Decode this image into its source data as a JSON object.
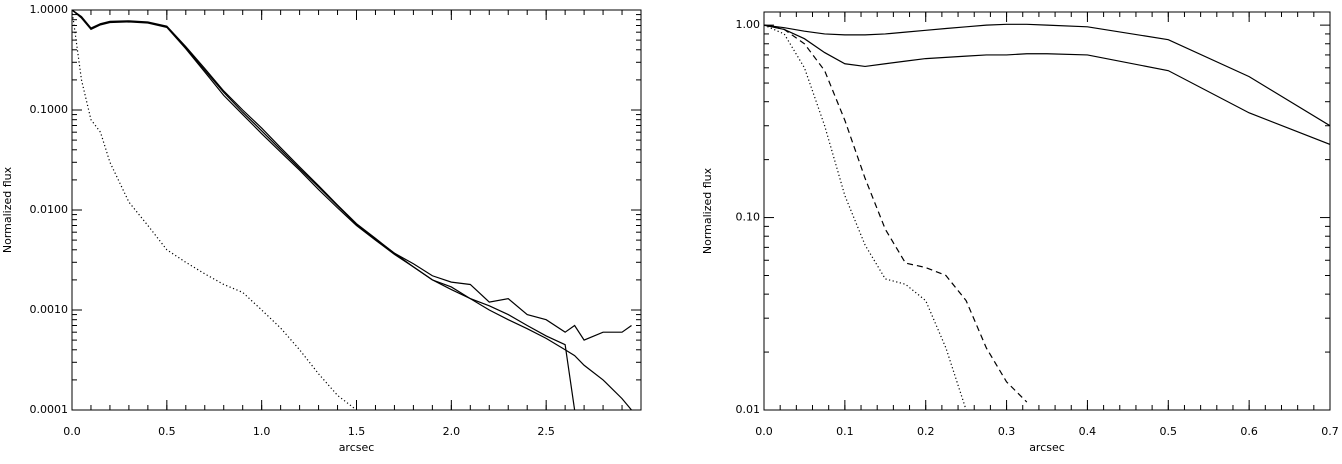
{
  "chart_data": [
    {
      "type": "line",
      "ylabel": "Normalized flux",
      "xlabel": "arcsec",
      "yscale": "log",
      "xlim": [
        0,
        3
      ],
      "ylim": [
        0.0001,
        1.0
      ],
      "xticks": [
        {
          "value": 0,
          "label": "0.0"
        },
        0.5,
        {
          "value": 1,
          "label": "1.0"
        },
        1.5,
        {
          "value": 2,
          "label": "2.0"
        },
        2.5
      ],
      "yticks": [
        {
          "value": 1,
          "label": "1.0000"
        },
        {
          "value": 0.1,
          "label": "0.1000"
        },
        {
          "value": 0.01,
          "label": "0.0100"
        },
        {
          "value": 0.001,
          "label": "0.0010"
        },
        {
          "value": 0.0001,
          "label": "0.0001"
        }
      ],
      "x": [
        0,
        0.05,
        0.1,
        0.15,
        0.2,
        0.3,
        0.4,
        0.5,
        0.6,
        0.7,
        0.8,
        0.9,
        1.0,
        1.1,
        1.2,
        1.3,
        1.4,
        1.5,
        1.6,
        1.7,
        1.8,
        1.9,
        2.0,
        2.1,
        2.2,
        2.3,
        2.4,
        2.5,
        2.6,
        2.65,
        2.7,
        2.8,
        2.9,
        2.95
      ],
      "series": [
        {
          "color": "#000000",
          "dash": "solid",
          "values": [
            1.0,
            0.85,
            0.65,
            0.72,
            0.76,
            0.77,
            0.75,
            0.68,
            0.42,
            0.25,
            0.15,
            0.095,
            0.062,
            0.04,
            0.026,
            0.017,
            0.011,
            0.0072,
            0.0051,
            0.0037,
            0.0029,
            0.0022,
            0.0019,
            0.0018,
            0.0012,
            0.0013,
            0.0009,
            0.0008,
            0.0006,
            0.0007,
            0.0005,
            0.0006,
            0.0006,
            0.0007
          ]
        },
        {
          "color": "#000000",
          "dash": "solid",
          "values": [
            1.0,
            0.83,
            0.64,
            0.71,
            0.75,
            0.76,
            0.74,
            0.67,
            0.41,
            0.24,
            0.14,
            0.09,
            0.058,
            0.038,
            0.025,
            0.016,
            0.0105,
            0.007,
            0.005,
            0.0036,
            0.0027,
            0.002,
            0.0016,
            0.0013,
            0.001,
            0.0008,
            0.00065,
            0.00052,
            0.0004,
            0.00035,
            0.00028,
            0.0002,
            0.00013,
            0.0001
          ]
        },
        {
          "color": "#000000",
          "dash": "solid",
          "values": [
            1.0,
            0.86,
            0.66,
            0.73,
            0.77,
            0.78,
            0.76,
            0.69,
            0.43,
            0.26,
            0.155,
            0.1,
            0.066,
            0.042,
            0.027,
            0.0175,
            0.0112,
            0.0073,
            0.0052,
            0.0037,
            0.0027,
            0.002,
            0.0017,
            0.0013,
            0.0011,
            0.0009,
            0.0007,
            0.00055,
            0.00045,
            0.0001,
            null,
            null,
            null,
            null
          ]
        },
        {
          "color": "#000000",
          "dash": "dotted",
          "values": [
            1.0,
            0.2,
            0.08,
            0.06,
            0.03,
            0.012,
            0.007,
            0.004,
            0.003,
            0.0023,
            0.0018,
            0.0015,
            0.001,
            0.00066,
            0.0004,
            0.00023,
            0.00014,
            0.0001,
            null,
            null,
            null,
            null,
            null,
            null,
            null,
            null,
            null,
            null,
            null,
            null,
            null,
            null,
            null,
            null
          ]
        }
      ]
    },
    {
      "type": "line",
      "ylabel": "Normalized flux",
      "xlabel": "arcsec",
      "yscale": "log",
      "xlim": [
        0,
        0.7
      ],
      "ylim": [
        0.01,
        1.17
      ],
      "xticks": [
        {
          "value": 0,
          "label": "0.0"
        },
        0.1,
        0.2,
        0.3,
        0.4,
        0.5,
        0.6,
        0.7
      ],
      "yticks": [
        {
          "value": 1,
          "label": "1.00"
        },
        {
          "value": 0.1,
          "label": "0.10"
        },
        0.01
      ],
      "x": [
        0,
        0.025,
        0.05,
        0.075,
        0.1,
        0.125,
        0.15,
        0.175,
        0.2,
        0.225,
        0.25,
        0.275,
        0.3,
        0.325,
        0.35,
        0.4,
        0.5,
        0.6,
        0.7
      ],
      "series": [
        {
          "color": "#000000",
          "dash": "solid",
          "values": [
            1.0,
            0.97,
            0.93,
            0.9,
            0.89,
            0.89,
            0.9,
            0.92,
            0.94,
            0.96,
            0.98,
            1.0,
            1.01,
            1.01,
            1.0,
            0.98,
            0.84,
            0.54,
            0.3
          ]
        },
        {
          "color": "#000000",
          "dash": "solid",
          "values": [
            1.0,
            0.95,
            0.85,
            0.72,
            0.63,
            0.61,
            0.63,
            0.65,
            0.67,
            0.68,
            0.69,
            0.7,
            0.7,
            0.71,
            0.71,
            0.7,
            0.58,
            0.35,
            0.24
          ]
        },
        {
          "color": "#000000",
          "dash": "dashed",
          "values": [
            1.0,
            0.95,
            0.8,
            0.58,
            0.32,
            0.16,
            0.087,
            0.058,
            0.055,
            0.05,
            0.037,
            0.021,
            0.014,
            0.011,
            null,
            null,
            null,
            null,
            null
          ]
        },
        {
          "color": "#000000",
          "dash": "dotted",
          "values": [
            1.0,
            0.9,
            0.6,
            0.3,
            0.13,
            0.072,
            0.048,
            0.045,
            0.037,
            0.021,
            0.01,
            null,
            null,
            null,
            null,
            null,
            null,
            null,
            null
          ]
        }
      ]
    }
  ]
}
